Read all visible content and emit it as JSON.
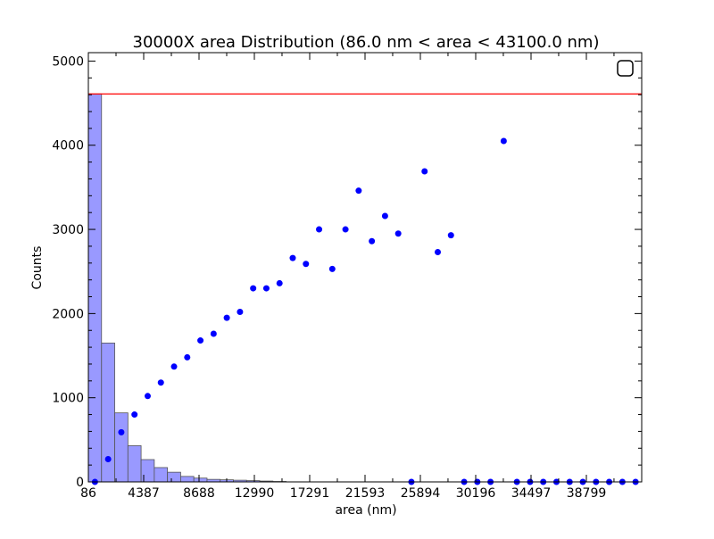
{
  "chart_data": {
    "type": "bar",
    "title": "30000X area Distribution (86.0 nm < area < 43100.0  nm)",
    "xlabel": "area (nm)",
    "ylabel": "Counts",
    "xlim": [
      86,
      43100
    ],
    "ylim": [
      0,
      5100
    ],
    "x_ticks": [
      86,
      4387,
      8688,
      12990,
      17291,
      21593,
      25894,
      30196,
      34497,
      38799
    ],
    "y_ticks": [
      0,
      1000,
      2000,
      3000,
      4000,
      5000
    ],
    "grid": false,
    "legend": {
      "placement": "top-right",
      "entries": [
        ""
      ]
    },
    "histogram": {
      "bin_width": 1025,
      "bin_starts": [
        86,
        1111,
        2136,
        3161,
        4186,
        5211,
        6236,
        7261,
        8286,
        9311,
        10336,
        11361,
        12386,
        13411,
        14436
      ],
      "counts": [
        4610,
        1650,
        820,
        430,
        265,
        170,
        115,
        65,
        45,
        30,
        25,
        20,
        15,
        10,
        5
      ],
      "color": "#9999ff"
    },
    "hline": {
      "y": 4610,
      "color": "#ff0000"
    },
    "scatter": {
      "color": "#0000ff",
      "x": [
        598,
        1623,
        2648,
        3673,
        4698,
        5723,
        6748,
        7773,
        8798,
        9823,
        10848,
        11873,
        12898,
        13923,
        14948,
        15973,
        16998,
        18023,
        19048,
        20073,
        21098,
        22123,
        23148,
        24173,
        25198,
        26223,
        27248,
        28273,
        29298,
        30323,
        31348,
        32373,
        33398,
        34423,
        35448,
        36473,
        37498,
        38523,
        39548,
        40573,
        41598,
        42623
      ],
      "y": [
        0,
        270,
        590,
        800,
        1020,
        1180,
        1370,
        1480,
        1680,
        1760,
        1950,
        2020,
        2300,
        2300,
        2360,
        2660,
        2590,
        3000,
        2530,
        3000,
        3460,
        2860,
        3160,
        2950,
        0,
        3690,
        2730,
        2930,
        0,
        0,
        0,
        4050,
        0,
        0,
        0,
        0,
        0,
        0,
        0,
        0,
        0,
        0
      ]
    }
  }
}
